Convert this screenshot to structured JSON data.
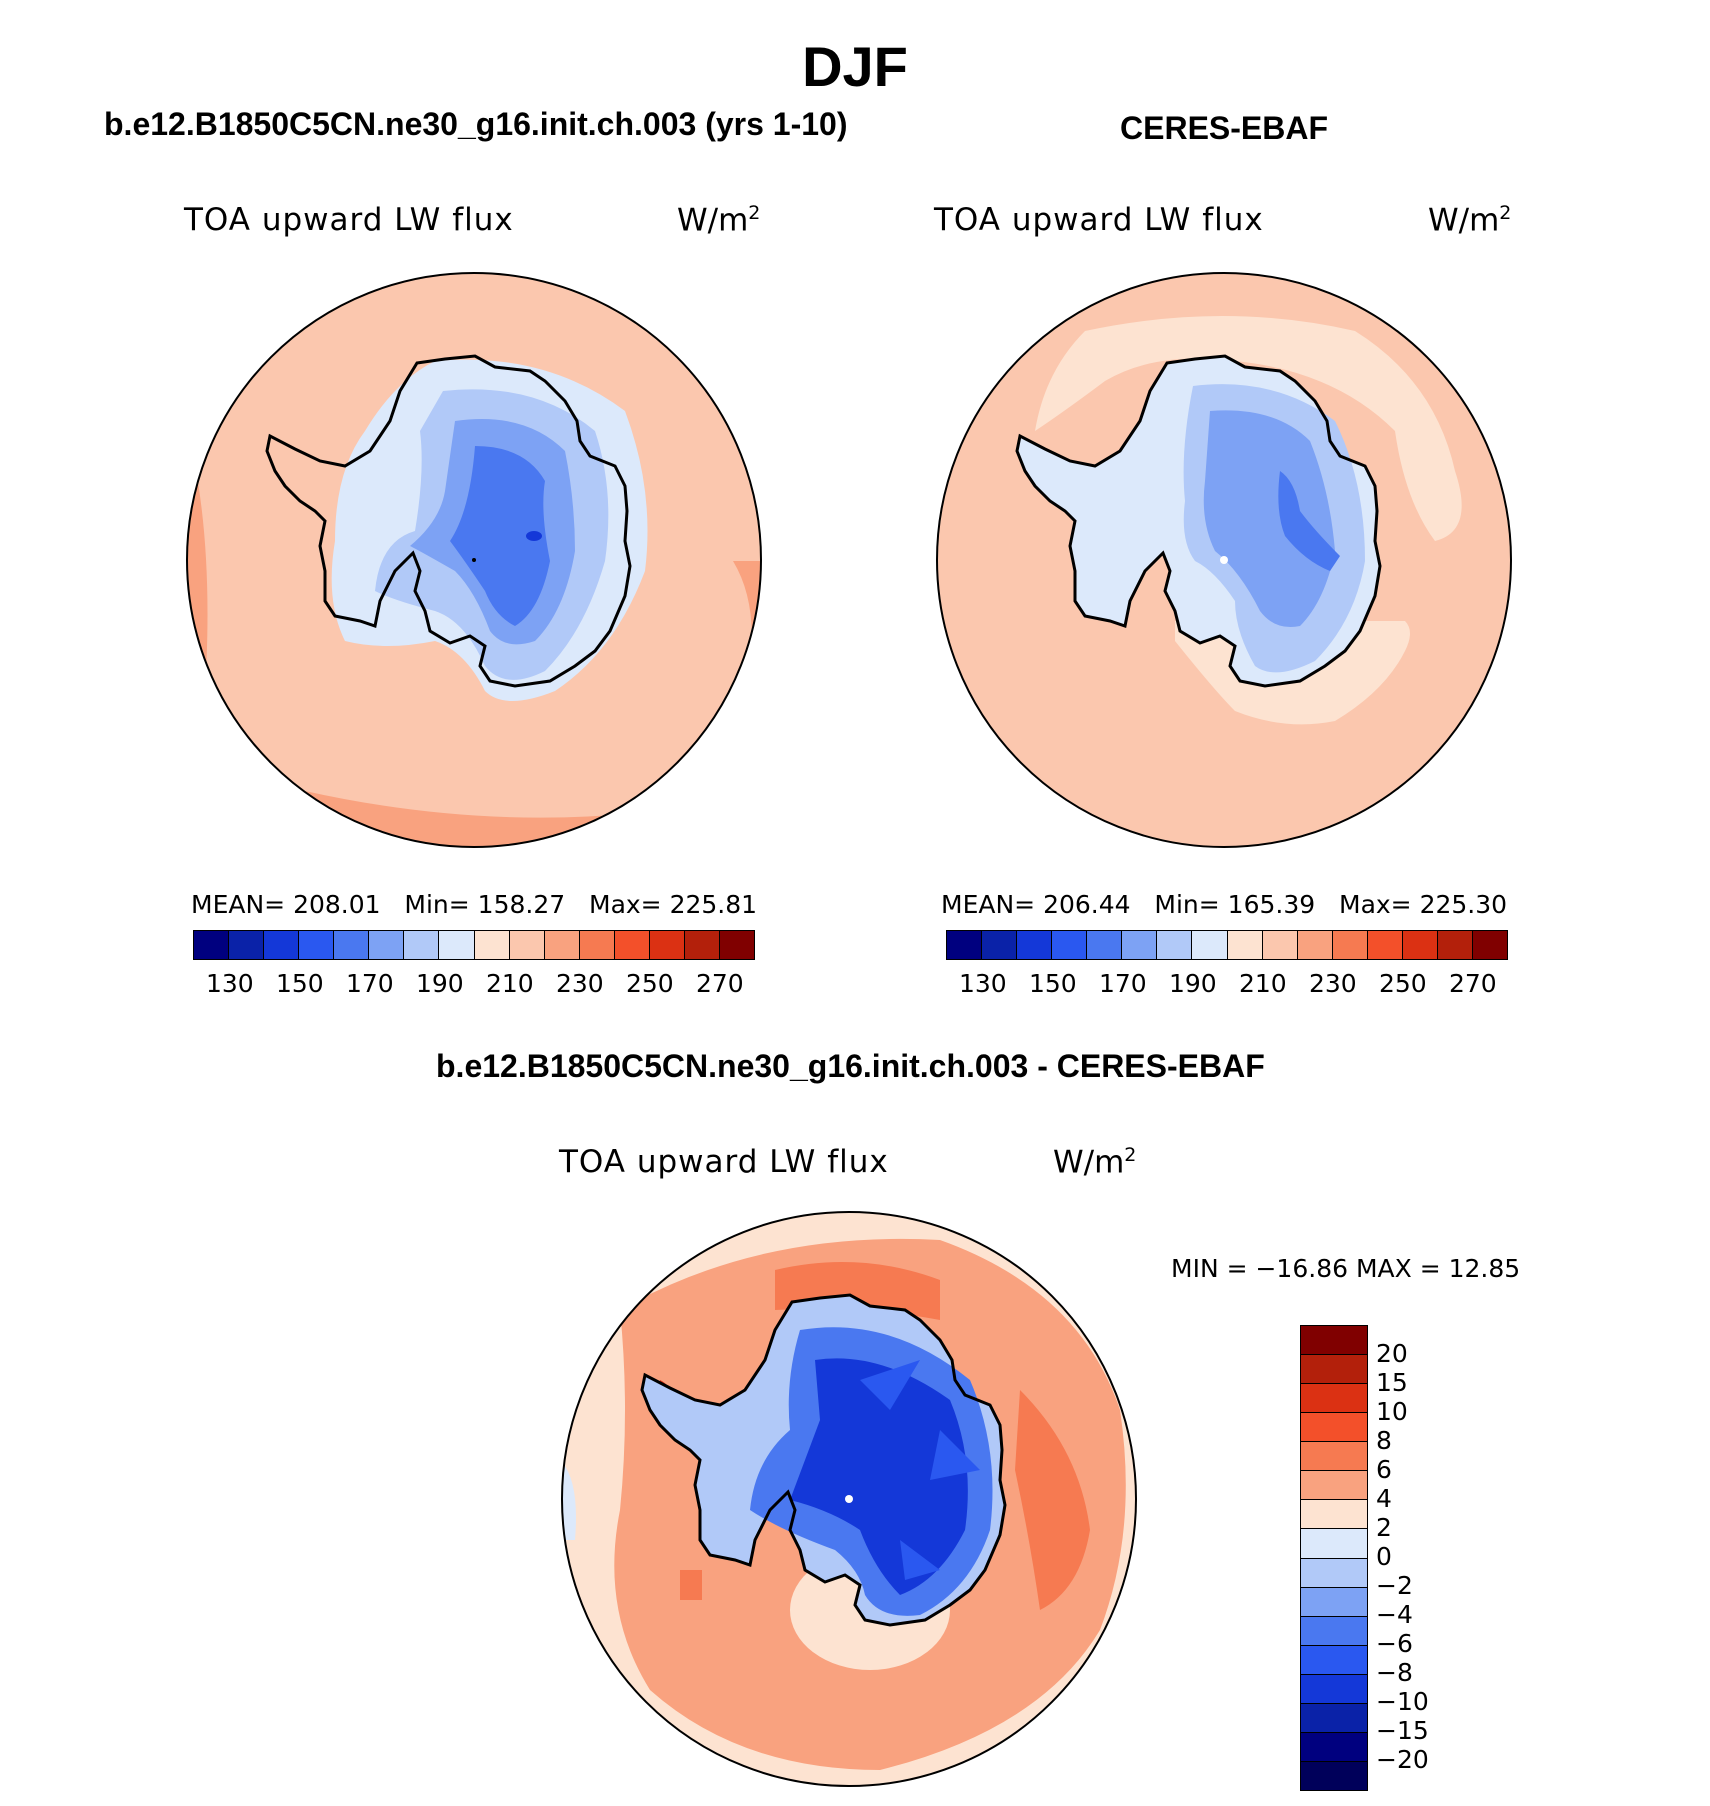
{
  "main_title": "DJF",
  "panels": [
    {
      "case_title": "b.e12.B1850C5CN.ne30_g16.init.ch.003 (yrs 1-10)",
      "variable": "TOA upward LW flux",
      "unit_base": "W/m",
      "unit_exp": "2",
      "stats": {
        "mean_label": "MEAN=",
        "mean": "208.01",
        "min_label": "Min=",
        "min": "158.27",
        "max_label": "Max=",
        "max": "225.81"
      },
      "tick_labels": [
        "130",
        "150",
        "170",
        "190",
        "210",
        "230",
        "250",
        "270"
      ]
    },
    {
      "case_title": "CERES-EBAF",
      "variable": "TOA upward LW flux",
      "unit_base": "W/m",
      "unit_exp": "2",
      "stats": {
        "mean_label": "MEAN=",
        "mean": "206.44",
        "min_label": "Min=",
        "min": "165.39",
        "max_label": "Max=",
        "max": "225.30"
      },
      "tick_labels": [
        "130",
        "150",
        "170",
        "190",
        "210",
        "230",
        "250",
        "270"
      ]
    }
  ],
  "diff_panel": {
    "case_title": "b.e12.B1850C5CN.ne30_g16.init.ch.003 - CERES-EBAF",
    "variable": "TOA upward LW flux",
    "unit_base": "W/m",
    "unit_exp": "2",
    "stats_text": "MIN = −16.86 MAX =   12.85",
    "tick_labels": [
      "20",
      "15",
      "10",
      "8",
      "6",
      "4",
      "2",
      "0",
      "−2",
      "−4",
      "−6",
      "−8",
      "−10",
      "−15",
      "−20"
    ]
  },
  "colors": {
    "levels_main": [
      "#00007f",
      "#0a22a8",
      "#1438d8",
      "#2a58f0",
      "#4a78f0",
      "#7da2f4",
      "#b1c9f8",
      "#dce9fb",
      "#fde3d1",
      "#fbc7ae",
      "#f9a27f",
      "#f67a51",
      "#f3502a",
      "#db3113",
      "#b3200b",
      "#800000"
    ],
    "levels_diff": [
      "#800000",
      "#b3200b",
      "#db3113",
      "#f3502a",
      "#f67a51",
      "#f9a27f",
      "#fde3d1",
      "#dce9fb",
      "#b1c9f8",
      "#7da2f4",
      "#4a78f0",
      "#2a58f0",
      "#1438d8",
      "#0a22a8",
      "#00007f",
      "#00005a"
    ]
  }
}
